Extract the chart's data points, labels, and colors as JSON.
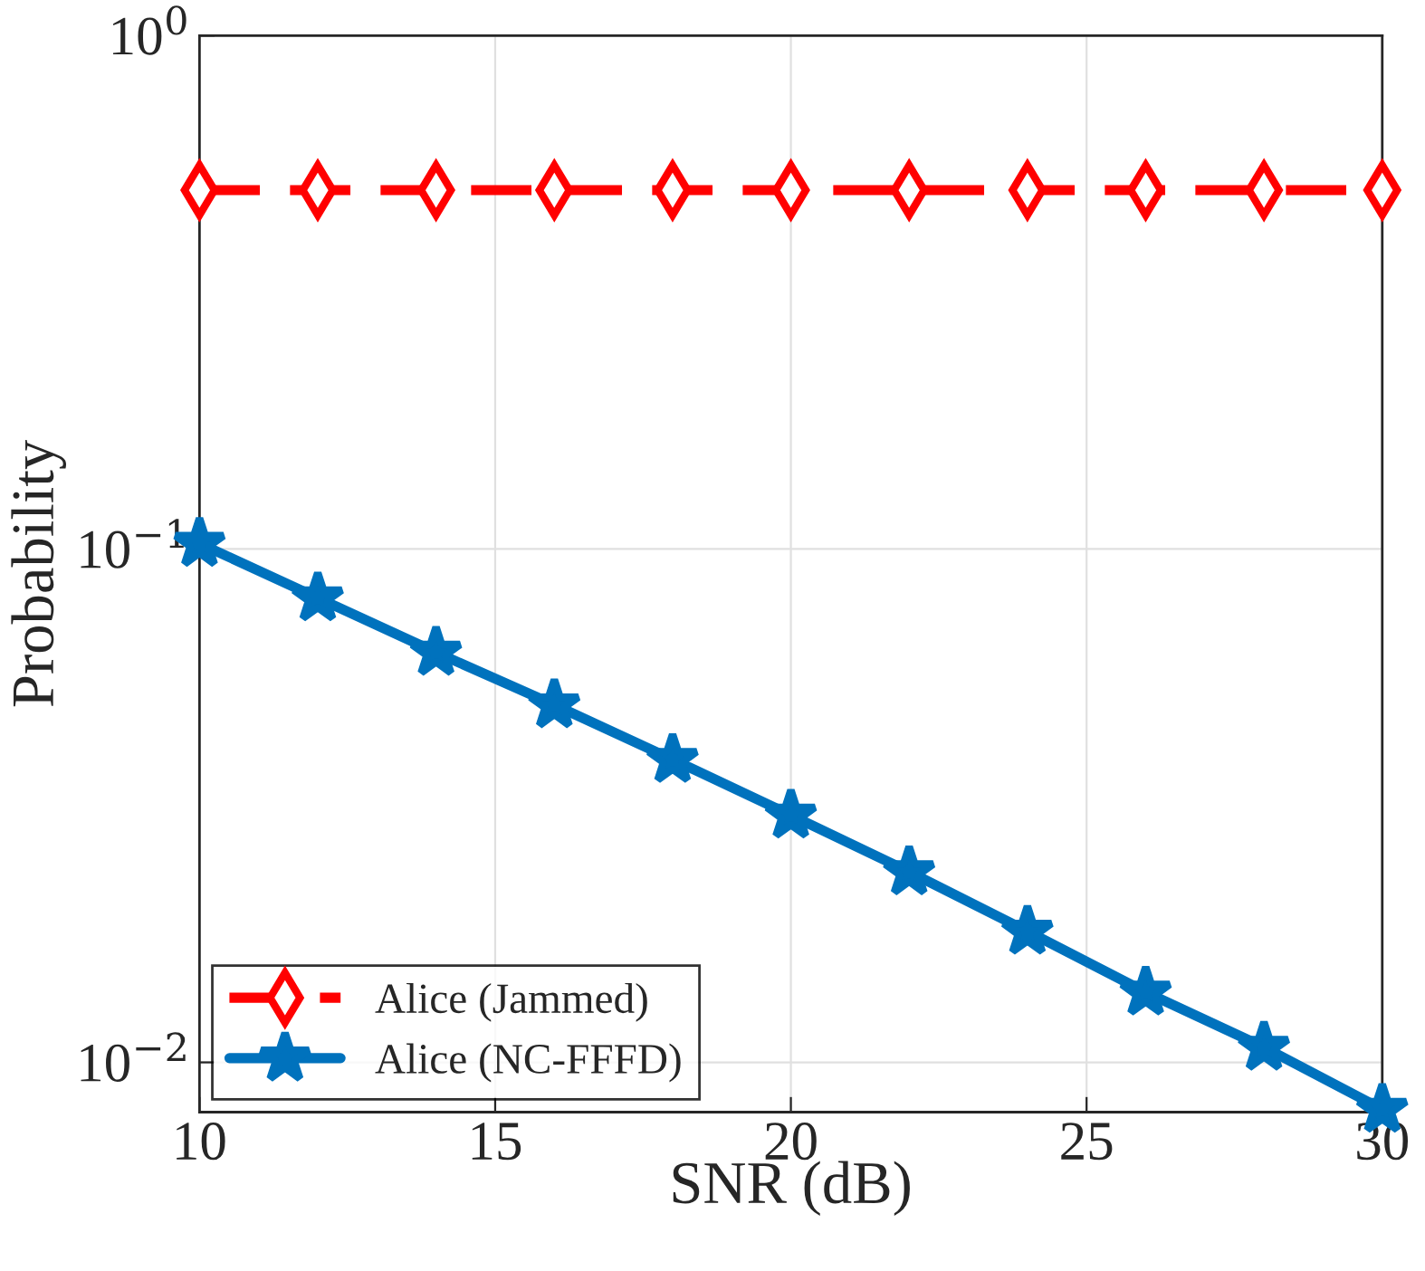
{
  "chart_data": {
    "type": "line",
    "xlabel": "SNR (dB)",
    "ylabel": "Probability",
    "x": [
      10,
      12,
      14,
      16,
      18,
      20,
      22,
      24,
      26,
      28,
      30
    ],
    "series": [
      {
        "name": "Alice (Jammed)",
        "color": "#ff0000",
        "marker": "diamond",
        "line_style": "dashed",
        "values": [
          0.5,
          0.5,
          0.5,
          0.5,
          0.5,
          0.5,
          0.5,
          0.5,
          0.5,
          0.5,
          0.5
        ]
      },
      {
        "name": "Alice (NC-FFFD)",
        "color": "#0072bd",
        "marker": "star",
        "line_style": "solid",
        "values": [
          0.1025,
          0.0803,
          0.0629,
          0.0497,
          0.0389,
          0.0303,
          0.0235,
          0.018,
          0.0137,
          0.0107,
          0.0081
        ]
      }
    ],
    "log": "y",
    "xlim": [
      10,
      30
    ],
    "xticks": [
      10,
      15,
      20,
      25,
      30
    ],
    "ylim": [
      0.008,
      1
    ],
    "yticks": [
      {
        "value": 0.01,
        "label": "10$^{−2}$"
      },
      {
        "value": 0.1,
        "label": "10$^{−1}$"
      },
      {
        "value": 1,
        "label": "10$^{0}$"
      }
    ],
    "grid": true,
    "legend": "bottom left"
  }
}
